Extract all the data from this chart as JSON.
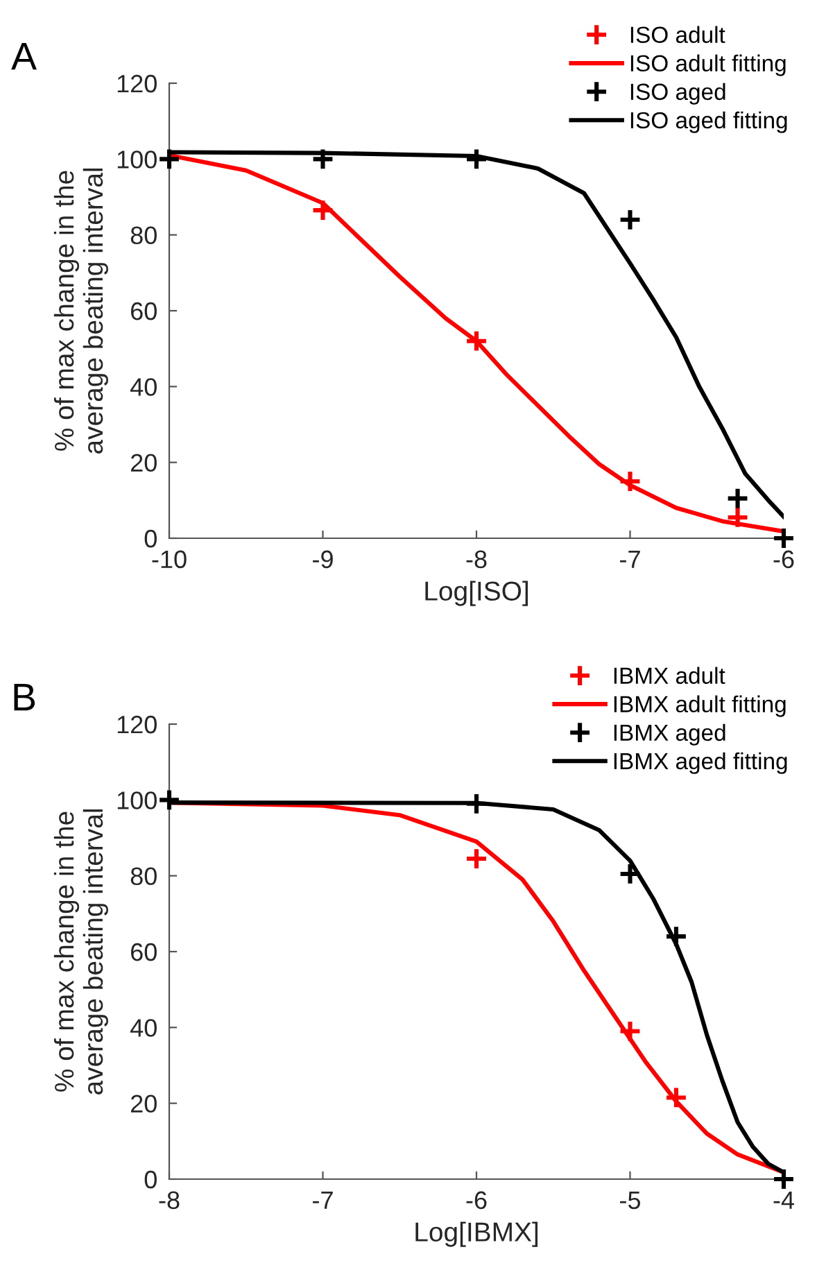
{
  "chart_data": [
    {
      "type": "line",
      "title": "A",
      "xlabel": "Log[ISO]",
      "ylabel": "% of max change in the\naverage beating interval",
      "xlim": [
        -10,
        -6
      ],
      "ylim": [
        0,
        120
      ],
      "xticks": [
        -10,
        -9,
        -8,
        -7,
        -6
      ],
      "yticks": [
        0,
        20,
        40,
        60,
        80,
        100,
        120
      ],
      "grid": false,
      "legend": "top right",
      "series": [
        {
          "name": "ISO adult",
          "type": "scatter",
          "marker": "cross",
          "color": "#ff0000",
          "x": [
            -9,
            -8,
            -7,
            -6.3
          ],
          "values": [
            86.5,
            52,
            15,
            5.5
          ]
        },
        {
          "name": "ISO adult fitting",
          "line_style": "solid",
          "color": "#ff0000",
          "x": [
            -10,
            -9.5,
            -9,
            -8.5,
            -8.2,
            -8,
            -7.8,
            -7.6,
            -7.4,
            -7.2,
            -7,
            -6.7,
            -6.4,
            -6
          ],
          "values": [
            101,
            97,
            88.4,
            69,
            58,
            52,
            43,
            35,
            27,
            19.5,
            14,
            8,
            4.5,
            1.8
          ]
        },
        {
          "name": "ISO aged",
          "type": "scatter",
          "marker": "cross",
          "color": "#000000",
          "x": [
            -10,
            -9,
            -8,
            -7,
            -6.3,
            -6
          ],
          "values": [
            100,
            100,
            100,
            84,
            10.5,
            0
          ]
        },
        {
          "name": "ISO aged fitting",
          "line_style": "solid",
          "color": "#000000",
          "x": [
            -10,
            -9,
            -8,
            -7.6,
            -7.3,
            -7,
            -6.85,
            -6.7,
            -6.55,
            -6.4,
            -6.25,
            -6.1,
            -6
          ],
          "values": [
            101.8,
            101.6,
            100.8,
            97.5,
            91,
            72.5,
            63,
            53,
            40,
            29,
            17,
            10,
            5.7
          ]
        }
      ]
    },
    {
      "type": "line",
      "title": "B",
      "xlabel": "Log[IBMX]",
      "ylabel": "% of max change in the\naverage beating interval",
      "xlim": [
        -8,
        -4
      ],
      "ylim": [
        0,
        120
      ],
      "xticks": [
        -8,
        -7,
        -6,
        -5,
        -4
      ],
      "yticks": [
        0,
        20,
        40,
        60,
        80,
        100,
        120
      ],
      "grid": false,
      "legend": "top right",
      "series": [
        {
          "name": "IBMX adult",
          "type": "scatter",
          "marker": "cross",
          "color": "#ff0000",
          "x": [
            -6,
            -5,
            -4.7
          ],
          "values": [
            84.5,
            39,
            21.5
          ]
        },
        {
          "name": "IBMX adult fitting",
          "line_style": "solid",
          "color": "#ff0000",
          "x": [
            -8,
            -7,
            -6.5,
            -6,
            -5.7,
            -5.5,
            -5.3,
            -5.1,
            -5,
            -4.9,
            -4.7,
            -4.5,
            -4.3,
            -4
          ],
          "values": [
            99.3,
            98.5,
            96,
            89,
            79,
            68,
            55,
            43,
            37,
            31,
            20.5,
            12,
            6.5,
            1.8
          ]
        },
        {
          "name": "IBMX aged",
          "type": "scatter",
          "marker": "cross",
          "color": "#000000",
          "x": [
            -8,
            -6,
            -5,
            -4.7,
            -4
          ],
          "values": [
            100,
            99,
            80.5,
            64,
            0
          ]
        },
        {
          "name": "IBMX aged fitting",
          "line_style": "solid",
          "color": "#000000",
          "x": [
            -8,
            -6,
            -5.5,
            -5.2,
            -5,
            -4.85,
            -4.7,
            -4.6,
            -4.5,
            -4.4,
            -4.3,
            -4.2,
            -4.1,
            -4
          ],
          "values": [
            99.3,
            99.2,
            97.5,
            92,
            84,
            74,
            62,
            52,
            38,
            26,
            15,
            8.5,
            4,
            1.8
          ]
        }
      ]
    }
  ]
}
